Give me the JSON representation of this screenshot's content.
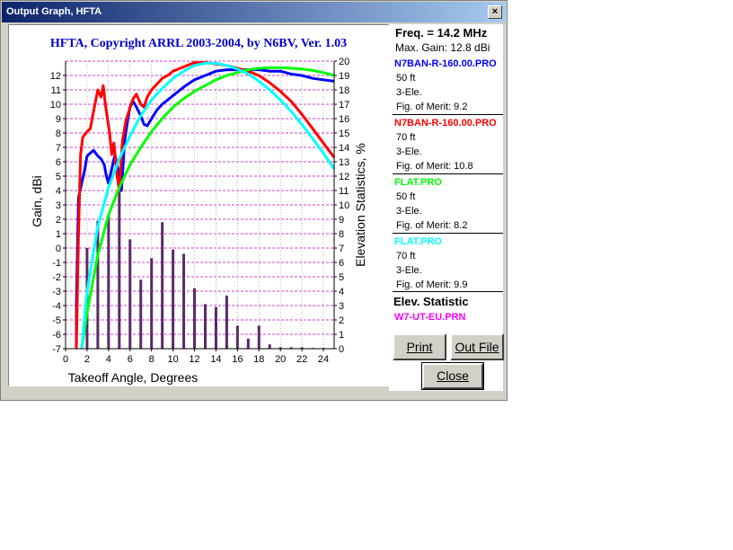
{
  "window": {
    "title": "Output Graph, HFTA",
    "close_glyph": "×"
  },
  "plot": {
    "title": "HFTA, Copyright ARRL 2003-2004, by N6BV, Ver. 1.03",
    "xlabel": "Takeoff Angle, Degrees",
    "ylabel": "Gain, dBi",
    "y2label": "Elevation Statistics, %",
    "xticks": [
      "0",
      "2",
      "4",
      "6",
      "8",
      "10",
      "12",
      "14",
      "16",
      "18",
      "20",
      "22",
      "24"
    ],
    "yticks": [
      "-7",
      "-6",
      "-5",
      "-4",
      "-3",
      "-2",
      "-1",
      "0",
      "1",
      "2",
      "3",
      "4",
      "5",
      "6",
      "7",
      "8",
      "9",
      "10",
      "11",
      "12"
    ],
    "y2ticks": [
      "0",
      "1",
      "2",
      "3",
      "4",
      "5",
      "6",
      "7",
      "8",
      "9",
      "10",
      "11",
      "12",
      "13",
      "14",
      "15",
      "16",
      "17",
      "18",
      "19",
      "20"
    ]
  },
  "sidebar": {
    "freq": "Freq. = 14.2 MHz",
    "max_gain": "Max. Gain: 12.8 dBi",
    "entries": [
      {
        "name": "N7BAN-R-160.00.PRO",
        "height": "50 ft",
        "type": "3-Ele.",
        "fom": "Fig. of Merit:  9.2",
        "color": "#0000ff"
      },
      {
        "name": "N7BAN-R-160.00.PRO",
        "height": "70 ft",
        "type": "3-Ele.",
        "fom": "Fig. of Merit:  10.8",
        "color": "#ff0000"
      },
      {
        "name": "FLAT.PRO",
        "height": "50 ft",
        "type": "3-Ele.",
        "fom": "Fig. of Merit:  8.2",
        "color": "#00ff00"
      },
      {
        "name": "FLAT.PRO",
        "height": "70 ft",
        "type": "3-Ele.",
        "fom": "Fig. of Merit:  9.9",
        "color": "#00ffff"
      }
    ],
    "elev_heading": "Elev. Statistic",
    "elev_file": "W7-UT-EU.PRN",
    "elev_color": "#ff00ff"
  },
  "buttons": {
    "print": "Print",
    "outfile": "Out File",
    "close": "Close"
  },
  "chart_data": {
    "type": "line",
    "title": "HFTA, Copyright ARRL 2003-2004, by N6BV, Ver. 1.03",
    "xlabel": "Takeoff Angle, Degrees",
    "ylabel": "Gain, dBi",
    "y2label": "Elevation Statistics, %",
    "xlim": [
      0,
      25
    ],
    "ylim": [
      -7,
      13
    ],
    "y2lim": [
      0,
      20
    ],
    "grid": true,
    "series": [
      {
        "name": "N7BAN-R-160.00.PRO",
        "color": "#0000ff",
        "x": [
          1.0,
          1.2,
          1.5,
          1.8,
          2.0,
          2.3,
          2.6,
          3.0,
          3.3,
          3.6,
          3.8,
          4.0,
          4.3,
          4.6,
          5.0,
          5.2,
          5.5,
          5.8,
          6.0,
          6.3,
          6.6,
          7.0,
          7.3,
          7.6,
          8.0,
          8.5,
          9.0,
          9.5,
          10,
          11,
          12,
          13,
          14,
          15,
          16,
          17,
          18,
          19,
          20,
          21,
          22,
          23,
          24,
          25
        ],
        "y": [
          -4,
          3.5,
          4.5,
          5.5,
          6.4,
          6.6,
          6.8,
          6.4,
          6.2,
          5.8,
          5.0,
          4.5,
          5.5,
          6.5,
          5.0,
          4.0,
          7.5,
          9.0,
          9.8,
          10.2,
          9.8,
          9.2,
          8.6,
          8.5,
          9.0,
          9.6,
          10.0,
          10.3,
          10.6,
          11.2,
          11.7,
          12.0,
          12.3,
          12.4,
          12.4,
          12.4,
          12.4,
          12.3,
          12.3,
          12.1,
          12.0,
          11.8,
          11.7,
          11.6
        ]
      },
      {
        "name": "N7BAN-R-160.00.PRO",
        "color": "#ff0000",
        "x": [
          1.0,
          1.2,
          1.4,
          1.6,
          1.8,
          2.0,
          2.3,
          2.6,
          3.0,
          3.3,
          3.5,
          3.7,
          3.9,
          4.1,
          4.3,
          4.5,
          4.8,
          5.0,
          5.3,
          5.6,
          6.0,
          6.3,
          6.6,
          7.0,
          7.3,
          7.6,
          8.0,
          8.5,
          9.0,
          9.5,
          10,
          11,
          12,
          13,
          14,
          15,
          16,
          17,
          18,
          19,
          20,
          21,
          22,
          23,
          24,
          25
        ],
        "y": [
          -7,
          1,
          6.5,
          7.7,
          7.9,
          8.1,
          8.3,
          9.5,
          11,
          10.5,
          11.3,
          10.0,
          9.0,
          8.0,
          6.5,
          7.3,
          5.0,
          4.0,
          7.5,
          8.8,
          9.8,
          10.4,
          10.7,
          10.0,
          9.8,
          10.5,
          11.0,
          11.4,
          11.8,
          12.0,
          12.3,
          12.6,
          12.9,
          12.9,
          12.8,
          12.7,
          12.5,
          12.3,
          12.0,
          11.5,
          10.9,
          10.2,
          9.3,
          8.3,
          7.3,
          6.3
        ]
      },
      {
        "name": "FLAT.PRO",
        "color": "#00ff00",
        "x": [
          1.5,
          2,
          3,
          4,
          5,
          6,
          7,
          8,
          9,
          10,
          11,
          12,
          13,
          14,
          15,
          16,
          17,
          18,
          19,
          20,
          21,
          22,
          23,
          24,
          25
        ],
        "y": [
          -7,
          -4.5,
          -0.5,
          2.3,
          4.2,
          5.8,
          7.0,
          8.1,
          9.0,
          9.8,
          10.4,
          10.9,
          11.3,
          11.7,
          12.0,
          12.2,
          12.4,
          12.5,
          12.55,
          12.55,
          12.5,
          12.45,
          12.35,
          12.2,
          12.0
        ]
      },
      {
        "name": "FLAT.PRO",
        "color": "#00ffff",
        "x": [
          1.5,
          2,
          3,
          4,
          5,
          6,
          7,
          8,
          9,
          10,
          11,
          12,
          13,
          14,
          15,
          16,
          17,
          18,
          19,
          20,
          21,
          22,
          23,
          24,
          25
        ],
        "y": [
          -7,
          -3.0,
          1.5,
          4.2,
          6.2,
          7.8,
          9.2,
          10.3,
          11.1,
          11.8,
          12.3,
          12.7,
          12.85,
          12.85,
          12.7,
          12.45,
          12.1,
          11.6,
          11.0,
          10.3,
          9.5,
          8.6,
          7.6,
          6.6,
          5.5
        ]
      }
    ],
    "bars": {
      "name": "W7-UT-EU.PRN",
      "color": "#5a2a6a",
      "axis": "y2",
      "x": [
        1,
        2,
        3,
        4,
        5,
        6,
        7,
        8,
        9,
        10,
        11,
        12,
        13,
        14,
        15,
        16,
        17,
        18,
        19,
        20,
        21,
        22,
        23,
        24
      ],
      "values": [
        3.1,
        7.0,
        8.9,
        9.3,
        11.1,
        7.6,
        4.8,
        6.3,
        8.8,
        6.9,
        6.6,
        4.2,
        3.1,
        2.9,
        3.7,
        1.6,
        0.7,
        1.6,
        0.3,
        0.1,
        0.1,
        0.1,
        0.05,
        0.05
      ]
    }
  }
}
